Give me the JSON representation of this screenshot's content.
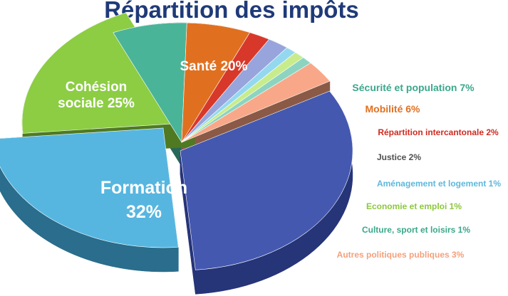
{
  "title": "Répartition des impôts",
  "chart_data": {
    "type": "pie",
    "title": "Répartition des impôts",
    "slices": [
      {
        "label": "Formation",
        "value": 32,
        "value_text": "32%",
        "color": "#4458b0",
        "side": "#263478"
      },
      {
        "label": "Cohésion sociale",
        "value": 25,
        "value_text": "25%",
        "color": "#56b6e0",
        "side": "#2a6d8c"
      },
      {
        "label": "Santé",
        "value": 20,
        "value_text": "20%",
        "color": "#8ccd44",
        "side": "#4f7a22"
      },
      {
        "label": "Sécurité et population",
        "value": 7,
        "value_text": "7%",
        "color": "#4ab498",
        "side": "#27685a"
      },
      {
        "label": "Mobilité",
        "value": 6,
        "value_text": "6%",
        "color": "#e07020",
        "side": "#8a4212"
      },
      {
        "label": "Répartition intercantonale",
        "value": 2,
        "value_text": "2%",
        "color": "#d8382a",
        "side": "#7c1e16"
      },
      {
        "label": "Justice",
        "value": 2,
        "value_text": "2%",
        "color": "#98a4dc",
        "side": "#58608c"
      },
      {
        "label": "Aménagement et logement",
        "value": 1,
        "value_text": "1%",
        "color": "#94d8f0",
        "side": "#4e8aa0"
      },
      {
        "label": "Economie et emploi",
        "value": 1,
        "value_text": "1%",
        "color": "#c8ec8c",
        "side": "#7a9a52"
      },
      {
        "label": "Culture, sport et loisirs",
        "value": 1,
        "value_text": "1%",
        "color": "#8cd4c0",
        "side": "#4e8a7a"
      },
      {
        "label": "Autres politiques publiques",
        "value": 3,
        "value_text": "3%",
        "color": "#f8a888",
        "side": "#8a5a46"
      }
    ],
    "label_colors": {
      "inside": "#ffffff",
      "Sécurité et population": "#3aa88a",
      "Mobilité": "#e07020",
      "Répartition intercantonale": "#d02a20",
      "Justice": "#505050",
      "Aménagement et logement": "#5cb8dc",
      "Economie et emploi": "#8cc83c",
      "Culture, sport et loisirs": "#3aa88a",
      "Autres politiques publiques": "#f4a07c"
    }
  }
}
